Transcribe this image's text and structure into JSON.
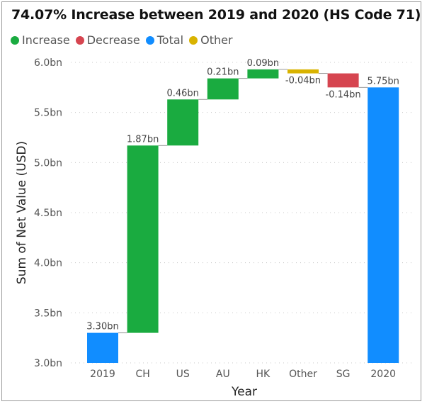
{
  "chart_data": {
    "type": "waterfall",
    "title": "74.07% Increase between 2019 and 2020 (HS Code 71)",
    "xlabel": "Year",
    "ylabel": "Sum of Net Value (USD)",
    "ylim": [
      3.0,
      6.0
    ],
    "yticks": [
      "3.0bn",
      "3.5bn",
      "4.0bn",
      "4.5bn",
      "5.0bn",
      "5.5bn",
      "6.0bn"
    ],
    "grid": true,
    "legend_position": "top-left",
    "legend": [
      {
        "name": "Increase",
        "color": "#1aab40"
      },
      {
        "name": "Decrease",
        "color": "#d64550"
      },
      {
        "name": "Total",
        "color": "#118dff"
      },
      {
        "name": "Other",
        "color": "#d9b300"
      }
    ],
    "categories": [
      "2019",
      "CH",
      "US",
      "AU",
      "HK",
      "Other",
      "SG",
      "2020"
    ],
    "bars": [
      {
        "category": "2019",
        "kind": "Total",
        "start": 0,
        "end": 3.3,
        "label": "3.30bn"
      },
      {
        "category": "CH",
        "kind": "Increase",
        "start": 3.3,
        "end": 5.17,
        "label": "1.87bn"
      },
      {
        "category": "US",
        "kind": "Increase",
        "start": 5.17,
        "end": 5.63,
        "label": "0.46bn"
      },
      {
        "category": "AU",
        "kind": "Increase",
        "start": 5.63,
        "end": 5.84,
        "label": "0.21bn"
      },
      {
        "category": "HK",
        "kind": "Increase",
        "start": 5.84,
        "end": 5.93,
        "label": "0.09bn"
      },
      {
        "category": "Other",
        "kind": "Other",
        "start": 5.93,
        "end": 5.89,
        "label": "-0.04bn"
      },
      {
        "category": "SG",
        "kind": "Decrease",
        "start": 5.89,
        "end": 5.75,
        "label": "-0.14bn"
      },
      {
        "category": "2020",
        "kind": "Total",
        "start": 0,
        "end": 5.75,
        "label": "5.75bn"
      }
    ]
  }
}
